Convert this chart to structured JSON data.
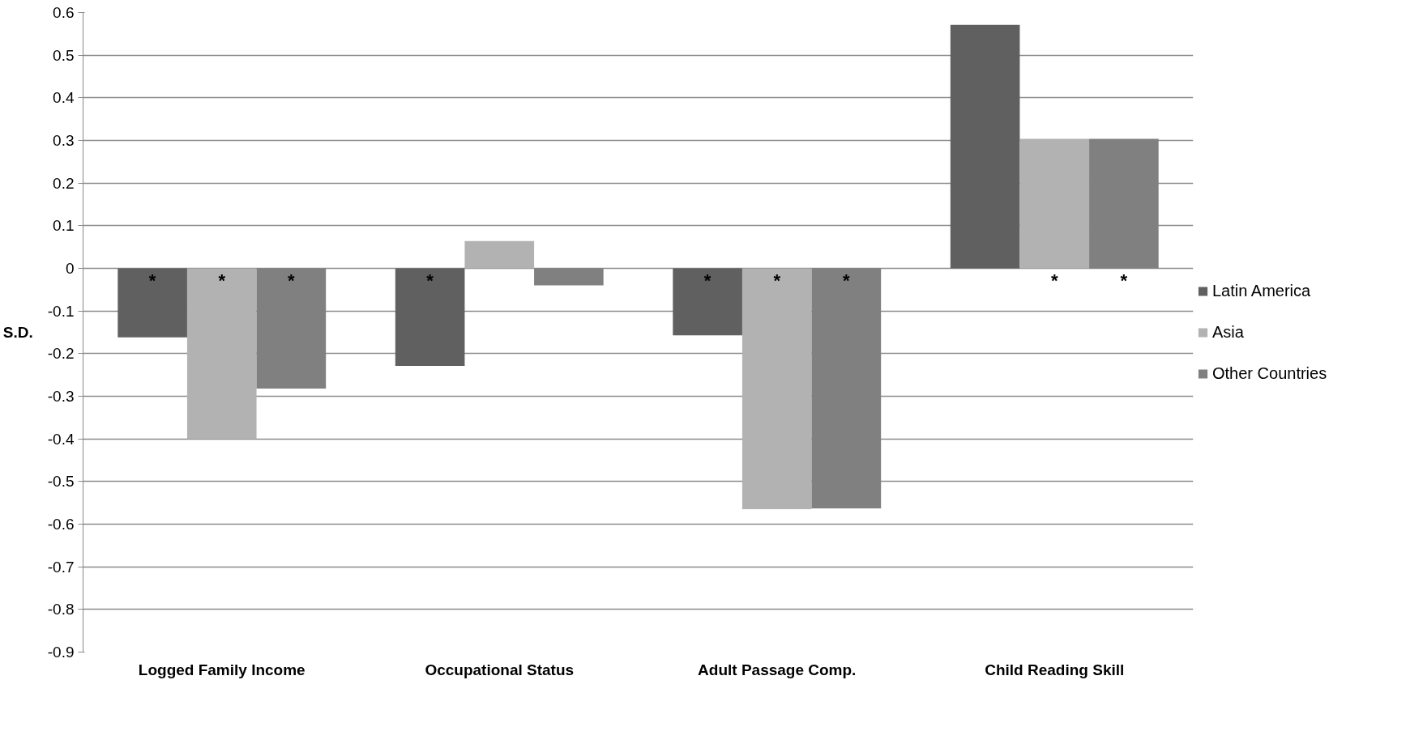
{
  "chart_data": {
    "type": "bar",
    "ylabel": "S.D.",
    "categories": [
      "Logged Family Income",
      "Occupational Status",
      "Adult Passage Comp.",
      "Child Reading Skill"
    ],
    "series": [
      {
        "name": "Latin America",
        "color": "#606060",
        "values": [
          -0.162,
          -0.229,
          -0.157,
          0.571
        ],
        "value_labels": [
          "*",
          "*",
          "*",
          null
        ]
      },
      {
        "name": "Asia",
        "color": "#b2b2b2",
        "values": [
          -0.4,
          0.064,
          -0.565,
          0.304
        ],
        "value_labels": [
          "*",
          null,
          "*",
          "*"
        ]
      },
      {
        "name": "Other Countries",
        "color": "#808080",
        "values": [
          -0.282,
          -0.04,
          -0.563,
          0.304
        ],
        "value_labels": [
          "*",
          null,
          "*",
          "*"
        ]
      }
    ],
    "ylim": [
      -0.9,
      0.6
    ],
    "yticks": [
      -0.9,
      -0.8,
      -0.7,
      -0.6,
      -0.5,
      -0.4,
      -0.3,
      -0.2,
      -0.1,
      0,
      0.1,
      0.2,
      0.3,
      0.4,
      0.5,
      0.6
    ],
    "grid": "y",
    "legend": "right"
  }
}
